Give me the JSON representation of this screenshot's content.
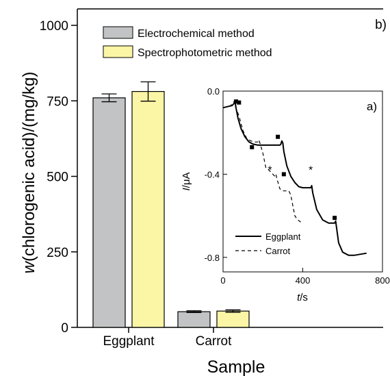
{
  "chart_data": [
    {
      "panel": "b)",
      "type": "bar",
      "xlabel": "Sample",
      "ylabel_var": "w",
      "ylabel_rest": "(chlorogenic acid)/(mg/kg)",
      "ylim": [
        0,
        1000
      ],
      "yticks": [
        0,
        250,
        500,
        750,
        1000
      ],
      "categories": [
        "Eggplant",
        "Carrot"
      ],
      "series": [
        {
          "name": "Electrochemical method",
          "color": "#c2c3c5",
          "values": [
            760,
            52
          ],
          "errors": [
            13,
            3
          ]
        },
        {
          "name": "Spectrophotometric method",
          "color": "#fbf5a6",
          "values": [
            781,
            54
          ],
          "errors": [
            32,
            4
          ]
        }
      ],
      "legend": "top-left"
    },
    {
      "panel": "a)",
      "type": "line",
      "xlabel_var": "t",
      "xlabel_unit": "/s",
      "ylabel_var": "I",
      "ylabel_unit": "/μA",
      "xlim": [
        0,
        800
      ],
      "ylim": [
        -0.87,
        0
      ],
      "xticks": [
        "0",
        "400",
        "800"
      ],
      "yticks": [
        "0.0",
        "-0.4",
        "-0.8"
      ],
      "series": [
        {
          "name": "Eggplant",
          "style": "solid",
          "x": [
            0,
            20,
            45,
            55,
            60,
            65,
            75,
            90,
            110,
            130,
            150,
            175,
            200,
            230,
            260,
            285,
            290,
            295,
            300,
            305,
            320,
            340,
            360,
            380,
            400,
            420,
            440,
            445,
            450,
            470,
            500,
            530,
            560,
            565,
            570,
            580,
            600,
            630,
            660,
            690,
            720
          ],
          "y": [
            -0.08,
            -0.075,
            -0.07,
            -0.06,
            -0.05,
            -0.08,
            -0.13,
            -0.18,
            -0.22,
            -0.245,
            -0.255,
            -0.26,
            -0.26,
            -0.26,
            -0.26,
            -0.26,
            -0.255,
            -0.24,
            -0.25,
            -0.29,
            -0.36,
            -0.41,
            -0.44,
            -0.46,
            -0.465,
            -0.465,
            -0.465,
            -0.455,
            -0.49,
            -0.57,
            -0.62,
            -0.635,
            -0.635,
            -0.625,
            -0.66,
            -0.73,
            -0.775,
            -0.79,
            -0.79,
            -0.785,
            -0.78
          ]
        },
        {
          "name": "Carrot",
          "style": "dashed",
          "x": [
            0,
            30,
            50,
            55,
            60,
            80,
            100,
            120,
            140,
            160,
            175,
            180,
            185,
            200,
            215,
            230,
            250,
            260,
            265,
            270,
            285,
            300,
            310,
            320,
            330,
            340,
            350,
            360,
            375,
            390
          ],
          "y": [
            -0.08,
            -0.075,
            -0.06,
            -0.05,
            -0.07,
            -0.12,
            -0.19,
            -0.23,
            -0.24,
            -0.245,
            -0.245,
            -0.235,
            -0.25,
            -0.3,
            -0.37,
            -0.38,
            -0.4,
            -0.41,
            -0.4,
            -0.42,
            -0.47,
            -0.48,
            -0.48,
            -0.48,
            -0.48,
            -0.5,
            -0.55,
            -0.6,
            -0.62,
            -0.63
          ]
        }
      ],
      "markers": {
        "squares": [
          [
            65,
            -0.05
          ],
          [
            80,
            -0.055
          ],
          [
            145,
            -0.27
          ],
          [
            275,
            -0.22
          ],
          [
            305,
            -0.4
          ],
          [
            560,
            -0.61
          ]
        ],
        "stars": [
          [
            235,
            -0.38
          ],
          [
            440,
            -0.38
          ]
        ]
      },
      "legend": "bottom-left"
    }
  ]
}
